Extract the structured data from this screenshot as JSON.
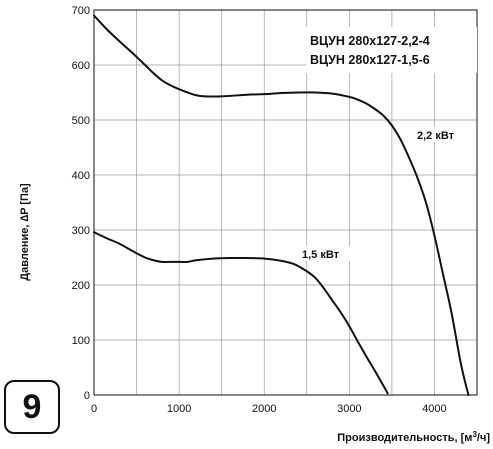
{
  "figure_number": "9",
  "chart_data": {
    "type": "line",
    "title": "",
    "legend": [
      "ВЦУН 280x127-2,2-4",
      "ВЦУН 280x127-1,5-6"
    ],
    "legend_placement": "top-right",
    "xlabel_prefix": "Производительность, [м",
    "xlabel_sup": "3",
    "xlabel_suffix": "/ч]",
    "ylabel": "Давление, ∆P [Па]",
    "xlim": [
      0,
      4500
    ],
    "ylim": [
      0,
      700
    ],
    "x_ticks": [
      0,
      1000,
      2000,
      3000,
      4000
    ],
    "y_ticks": [
      0,
      100,
      200,
      300,
      400,
      500,
      600,
      700
    ],
    "grid": true,
    "series": [
      {
        "name": "2,2 кВт",
        "x": [
          0,
          150,
          300,
          450,
          600,
          700,
          800,
          900,
          1000,
          1100,
          1200,
          1300,
          1500,
          1800,
          2000,
          2200,
          2400,
          2600,
          2800,
          3000,
          3100,
          3200,
          3300,
          3400,
          3500,
          3600,
          3700,
          3800,
          3900,
          4000,
          4100,
          4200,
          4300,
          4350,
          4400
        ],
        "y": [
          690,
          665,
          643,
          622,
          600,
          585,
          572,
          563,
          556,
          550,
          545,
          543,
          543,
          546,
          547,
          549,
          550,
          550,
          548,
          542,
          537,
          530,
          520,
          508,
          490,
          465,
          432,
          395,
          350,
          290,
          220,
          150,
          65,
          30,
          0
        ]
      },
      {
        "name": "1,5 кВт",
        "x": [
          0,
          150,
          300,
          450,
          600,
          700,
          800,
          900,
          1000,
          1100,
          1200,
          1400,
          1600,
          1800,
          2000,
          2200,
          2350,
          2500,
          2600,
          2700,
          2800,
          2900,
          3000,
          3100,
          3200,
          3300,
          3400,
          3450
        ],
        "y": [
          296,
          285,
          275,
          262,
          250,
          245,
          242,
          242,
          242,
          242,
          245,
          248,
          249,
          249,
          248,
          244,
          238,
          225,
          213,
          194,
          172,
          150,
          125,
          97,
          70,
          44,
          17,
          3
        ]
      }
    ]
  }
}
